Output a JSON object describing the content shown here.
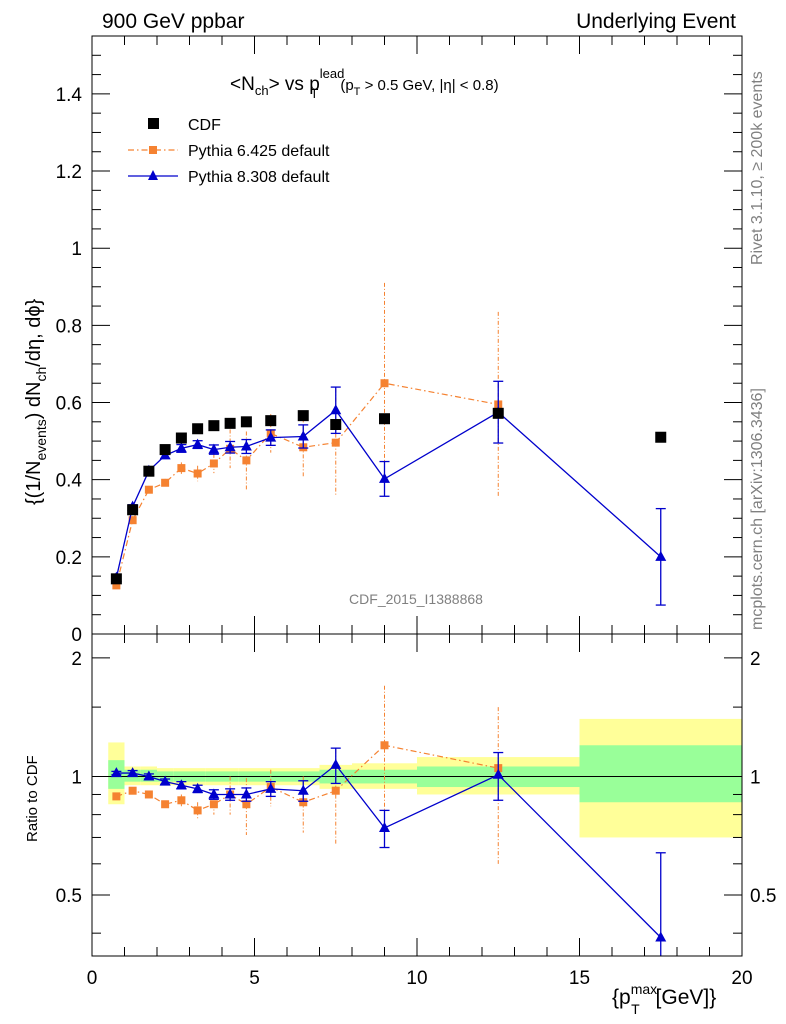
{
  "header": {
    "left": "900 GeV ppbar",
    "right": "Underlying Event"
  },
  "side": {
    "rivet": "Rivet 3.1.10, ≥ 200k events",
    "mcplots": "mcplots.cern.ch [arXiv:1306.3436]"
  },
  "watermark": "CDF_2015_I1388868",
  "chart_data": [
    {
      "type": "scatter",
      "panel": "main",
      "title_parts": {
        "a": "<N",
        "a_sub": "ch",
        "b": "> vs p",
        "b_sup": "lead",
        "b_sub": "T",
        "c": "(p",
        "c_sub": "T",
        "d": " > 0.5 GeV, |η| < 0.8)"
      },
      "ylabel_parts": {
        "a": "{(1/N",
        "a_sub": "events",
        "b": ") dN",
        "b_sub": "ch",
        "c": "/dη, dϕ}"
      },
      "xlim": [
        0,
        20
      ],
      "ylim": [
        0,
        1.55
      ],
      "yticks": [
        0,
        0.2,
        0.4,
        0.6,
        0.8,
        1,
        1.2,
        1.4
      ],
      "ytick_labels": [
        "0",
        "0.2",
        "0.4",
        "0.6",
        "0.8",
        "1",
        "1.2",
        "1.4"
      ],
      "legend_position": "top-left",
      "series": [
        {
          "name": "CDF",
          "style": "data",
          "color": "#000000",
          "x": [
            0.75,
            1.25,
            1.75,
            2.25,
            2.75,
            3.25,
            3.75,
            4.25,
            4.75,
            5.5,
            6.5,
            7.5,
            9.0,
            12.5,
            17.5
          ],
          "y": [
            0.143,
            0.322,
            0.422,
            0.478,
            0.508,
            0.532,
            0.54,
            0.546,
            0.55,
            0.553,
            0.566,
            0.543,
            0.558,
            0.572,
            0.51
          ]
        },
        {
          "name": "Pythia 6.425 default",
          "style": "dashdot-square",
          "color": "#f58231",
          "x": [
            0.75,
            1.25,
            1.75,
            2.25,
            2.75,
            3.25,
            3.75,
            4.25,
            4.75,
            5.5,
            6.5,
            7.5,
            9.0,
            12.5
          ],
          "y": [
            0.126,
            0.295,
            0.374,
            0.392,
            0.43,
            0.416,
            0.442,
            0.48,
            0.45,
            0.52,
            0.484,
            0.496,
            0.65,
            0.595
          ],
          "err": [
            0.005,
            0.01,
            0.01,
            0.01,
            0.015,
            0.02,
            0.025,
            0.05,
            0.075,
            0.05,
            0.075,
            0.14,
            0.26,
            0.24
          ]
        },
        {
          "name": "Pythia 8.308 default",
          "style": "solid-triangle",
          "color": "#0000cc",
          "x": [
            0.75,
            1.25,
            1.75,
            2.25,
            2.75,
            3.25,
            3.75,
            4.25,
            4.75,
            5.5,
            6.5,
            7.5,
            9.0,
            12.5,
            17.5
          ],
          "y": [
            0.146,
            0.33,
            0.423,
            0.463,
            0.481,
            0.491,
            0.478,
            0.484,
            0.486,
            0.509,
            0.512,
            0.58,
            0.402,
            0.575,
            0.2
          ],
          "err": [
            0.003,
            0.005,
            0.006,
            0.008,
            0.01,
            0.01,
            0.012,
            0.015,
            0.018,
            0.02,
            0.03,
            0.06,
            0.045,
            0.08,
            0.125
          ]
        }
      ]
    },
    {
      "type": "scatter",
      "panel": "ratio",
      "ylabel": "Ratio to CDF",
      "xlabel_parts": {
        "a": "{p",
        "a_sup": "max",
        "a_sub": "T",
        "b": " [GeV]}"
      },
      "xlim": [
        0,
        20
      ],
      "ylim": [
        0.35,
        2.3
      ],
      "log_y": true,
      "xticks": [
        0,
        5,
        10,
        15,
        20
      ],
      "xtick_labels": [
        "0",
        "5",
        "10",
        "15",
        "20"
      ],
      "yticks": [
        0.5,
        1,
        2
      ],
      "ytick_labels": [
        "0.5",
        "1",
        "2"
      ],
      "bands": [
        {
          "x0": 0.5,
          "x1": 1.0,
          "yellow": [
            0.85,
            1.22
          ],
          "green": [
            0.93,
            1.1
          ]
        },
        {
          "x0": 1.0,
          "x1": 1.5,
          "yellow": [
            0.95,
            1.06
          ],
          "green": [
            0.97,
            1.04
          ]
        },
        {
          "x0": 1.5,
          "x1": 2.0,
          "yellow": [
            0.95,
            1.06
          ],
          "green": [
            0.97,
            1.04
          ]
        },
        {
          "x0": 2.0,
          "x1": 2.5,
          "yellow": [
            0.95,
            1.05
          ],
          "green": [
            0.97,
            1.03
          ]
        },
        {
          "x0": 2.5,
          "x1": 3.0,
          "yellow": [
            0.95,
            1.05
          ],
          "green": [
            0.97,
            1.03
          ]
        },
        {
          "x0": 3.0,
          "x1": 3.5,
          "yellow": [
            0.95,
            1.05
          ],
          "green": [
            0.97,
            1.03
          ]
        },
        {
          "x0": 3.5,
          "x1": 4.0,
          "yellow": [
            0.95,
            1.05
          ],
          "green": [
            0.97,
            1.03
          ]
        },
        {
          "x0": 4.0,
          "x1": 4.5,
          "yellow": [
            0.95,
            1.05
          ],
          "green": [
            0.97,
            1.03
          ]
        },
        {
          "x0": 4.5,
          "x1": 5.0,
          "yellow": [
            0.95,
            1.05
          ],
          "green": [
            0.97,
            1.03
          ]
        },
        {
          "x0": 5.0,
          "x1": 6.0,
          "yellow": [
            0.95,
            1.05
          ],
          "green": [
            0.97,
            1.03
          ]
        },
        {
          "x0": 6.0,
          "x1": 7.0,
          "yellow": [
            0.95,
            1.05
          ],
          "green": [
            0.97,
            1.03
          ]
        },
        {
          "x0": 7.0,
          "x1": 8.0,
          "yellow": [
            0.93,
            1.07
          ],
          "green": [
            0.96,
            1.04
          ]
        },
        {
          "x0": 8.0,
          "x1": 10.0,
          "yellow": [
            0.93,
            1.08
          ],
          "green": [
            0.96,
            1.04
          ]
        },
        {
          "x0": 10.0,
          "x1": 15.0,
          "yellow": [
            0.9,
            1.12
          ],
          "green": [
            0.94,
            1.06
          ]
        },
        {
          "x0": 15.0,
          "x1": 20.0,
          "yellow": [
            0.7,
            1.4
          ],
          "green": [
            0.86,
            1.2
          ]
        }
      ],
      "series": [
        {
          "name": "Pythia 6.425 default",
          "color": "#f58231",
          "x": [
            0.75,
            1.25,
            1.75,
            2.25,
            2.75,
            3.25,
            3.75,
            4.25,
            4.75,
            5.5,
            6.5,
            7.5,
            9.0,
            12.5
          ],
          "y": [
            0.89,
            0.92,
            0.9,
            0.85,
            0.87,
            0.82,
            0.85,
            0.9,
            0.85,
            0.94,
            0.86,
            0.92,
            1.2,
            1.05
          ],
          "err": [
            0.01,
            0.015,
            0.015,
            0.015,
            0.03,
            0.04,
            0.05,
            0.1,
            0.14,
            0.1,
            0.14,
            0.25,
            0.5,
            0.45
          ]
        },
        {
          "name": "Pythia 8.308 default",
          "color": "#0000cc",
          "x": [
            0.75,
            1.25,
            1.75,
            2.25,
            2.75,
            3.25,
            3.75,
            4.25,
            4.75,
            5.5,
            6.5,
            7.5,
            9.0,
            12.5,
            17.5
          ],
          "y": [
            1.02,
            1.02,
            1.0,
            0.97,
            0.95,
            0.93,
            0.9,
            0.9,
            0.9,
            0.93,
            0.92,
            1.07,
            0.74,
            1.01,
            0.39
          ],
          "err": [
            0.01,
            0.015,
            0.015,
            0.015,
            0.02,
            0.02,
            0.025,
            0.03,
            0.035,
            0.04,
            0.055,
            0.11,
            0.08,
            0.14,
            0.25
          ]
        }
      ]
    }
  ]
}
